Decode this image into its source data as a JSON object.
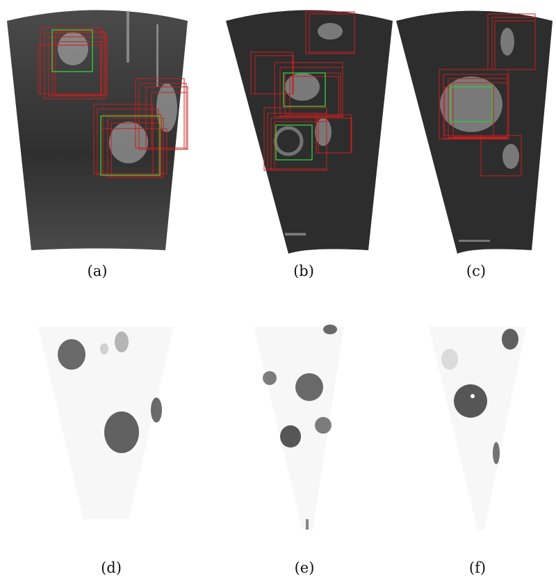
{
  "figure": {
    "panels": [
      {
        "caption": "(a)",
        "kind": "sonar-detections"
      },
      {
        "caption": "(b)",
        "kind": "sonar-detections"
      },
      {
        "caption": "(c)",
        "kind": "sonar-detections"
      },
      {
        "caption": "(d)",
        "kind": "heatmap"
      },
      {
        "caption": "(e)",
        "kind": "heatmap"
      },
      {
        "caption": "(f)",
        "kind": "heatmap"
      }
    ],
    "colors": {
      "sonar_background": "#2a2a2a",
      "candidate_box": "#c81e1e",
      "ground_truth_box": "#39c43c",
      "heatmap_low": "#ffffff",
      "heatmap_high": "#3a3a3a"
    }
  }
}
